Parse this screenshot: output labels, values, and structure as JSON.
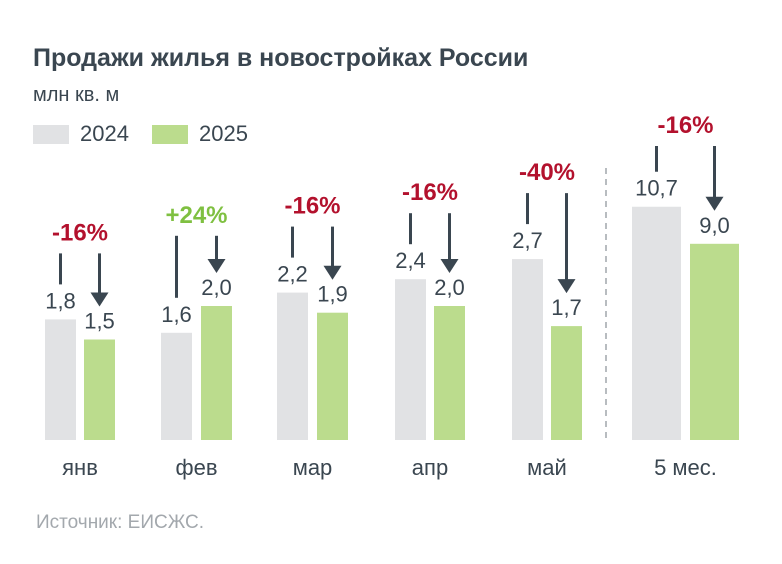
{
  "title": "Продажи жилья в новостройках России",
  "subtitle": "млн кв. м",
  "source": "Источник: ЕИСЖС.",
  "colors": {
    "y2024": "#e1e2e4",
    "y2025": "#bbdc8d",
    "negative": "#b3112d",
    "positive": "#7fc041",
    "arrow": "#3a4650",
    "text": "#3a4650"
  },
  "chart_data": {
    "type": "bar",
    "categories": [
      "янв",
      "фев",
      "мар",
      "апр",
      "май",
      "5 мес."
    ],
    "series": [
      {
        "name": "2024",
        "values": [
          1.8,
          1.6,
          2.2,
          2.4,
          2.7,
          10.7
        ],
        "labels": [
          "1,8",
          "1,6",
          "2,2",
          "2,4",
          "2,7",
          "10,7"
        ]
      },
      {
        "name": "2025",
        "values": [
          1.5,
          2.0,
          1.9,
          2.0,
          1.7,
          9.0
        ],
        "labels": [
          "1,5",
          "2,0",
          "1,9",
          "2,0",
          "1,7",
          "9,0"
        ]
      }
    ],
    "changes": [
      "-16%",
      "+24%",
      "-16%",
      "-16%",
      "-40%",
      "-16%"
    ],
    "ylabel": "млн кв. м",
    "legend_position": "top-left",
    "grid": false,
    "separator_before": "5 мес."
  }
}
